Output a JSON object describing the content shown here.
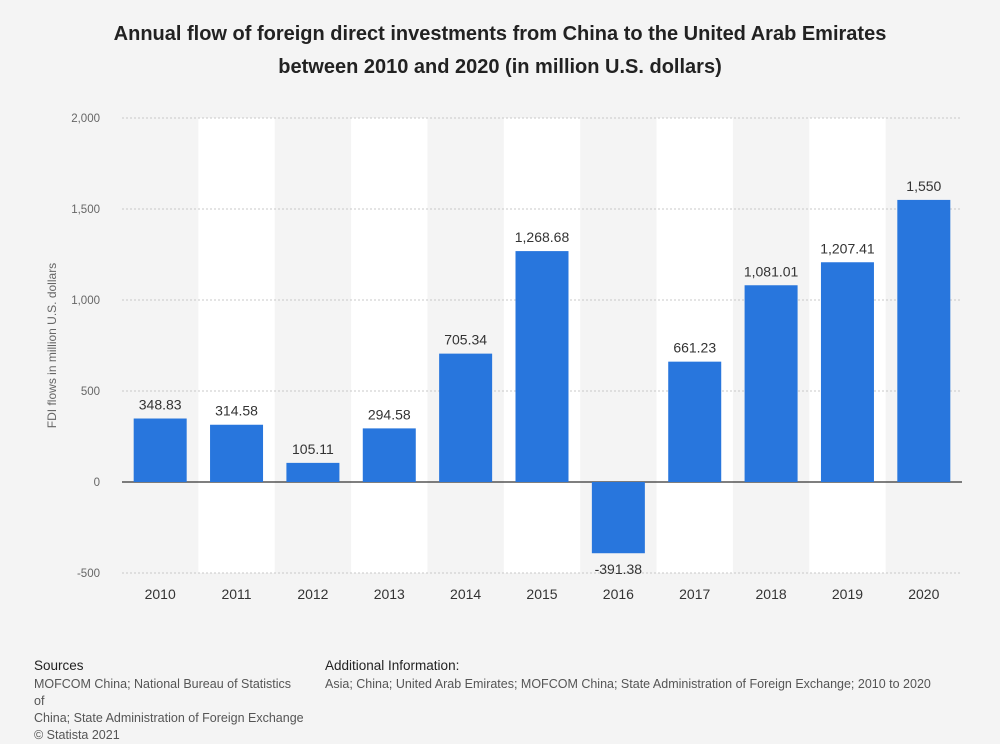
{
  "title_line1": "Annual flow of foreign direct investments from China to the United Arab Emirates",
  "title_line2": "between 2010 and 2020 (in million U.S. dollars)",
  "chart_data": {
    "type": "bar",
    "title": "Annual flow of foreign direct investments from China to the United Arab Emirates between 2010 and 2020 (in million U.S. dollars)",
    "xlabel": "",
    "ylabel": "FDI flows in million U.S. dollars",
    "categories": [
      "2010",
      "2011",
      "2012",
      "2013",
      "2014",
      "2015",
      "2016",
      "2017",
      "2018",
      "2019",
      "2020"
    ],
    "values": [
      348.83,
      314.58,
      105.11,
      294.58,
      705.34,
      1268.68,
      -391.38,
      661.23,
      1081.01,
      1207.41,
      1550
    ],
    "value_labels": [
      "348.83",
      "314.58",
      "105.11",
      "294.58",
      "705.34",
      "1,268.68",
      "-391.38",
      "661.23",
      "1,081.01",
      "1,207.41",
      "1,550"
    ],
    "ylim": [
      -500,
      2000
    ],
    "yticks": [
      -500,
      0,
      500,
      1000,
      1500,
      2000
    ],
    "ytick_labels": [
      "-500",
      "0",
      "500",
      "1,000",
      "1,500",
      "2,000"
    ],
    "grid": true,
    "bar_color": "#2876dd"
  },
  "footer": {
    "sources_title": "Sources",
    "sources_lines": [
      "MOFCOM China; National Bureau of Statistics of",
      "China; State Administration of Foreign Exchange",
      "© Statista 2021"
    ],
    "additional_title": "Additional Information:",
    "additional_text": "Asia; China; United Arab Emirates; MOFCOM China; State Administration of Foreign Exchange; 2010 to 2020"
  }
}
